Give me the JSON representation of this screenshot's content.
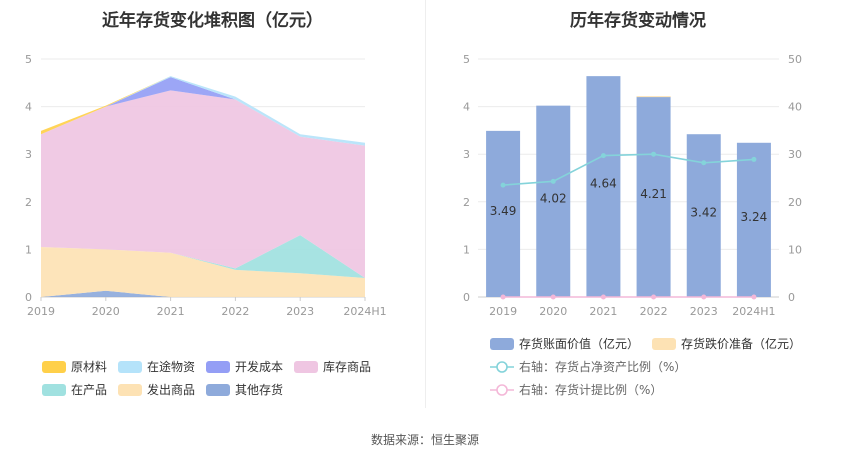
{
  "titles": {
    "left": "近年存货变化堆积图（亿元）",
    "right": "历年存货变动情况"
  },
  "source": "数据来源：恒生聚源",
  "chart_data": [
    {
      "type": "area",
      "title": "近年存货变化堆积图（亿元）",
      "categories": [
        "2019",
        "2020",
        "2021",
        "2022",
        "2023",
        "2024H1"
      ],
      "ylim": [
        0,
        5
      ],
      "yticks": [
        "0",
        "1",
        "2",
        "3",
        "4",
        "5"
      ],
      "stacked": true,
      "grid": true,
      "legend_position": "bottom",
      "series": [
        {
          "name": "其他存货",
          "color": "#8eaadb",
          "values": [
            0.0,
            0.13,
            0.0,
            0.0,
            0.0,
            0.0
          ]
        },
        {
          "name": "发出商品",
          "color": "#fde2b4",
          "values": [
            1.05,
            0.87,
            0.93,
            0.57,
            0.5,
            0.4
          ]
        },
        {
          "name": "在产品",
          "color": "#a0e1e0",
          "values": [
            0.0,
            0.0,
            0.0,
            0.03,
            0.8,
            0.0
          ]
        },
        {
          "name": "库存商品",
          "color": "#efc6e2",
          "values": [
            2.37,
            3.0,
            3.41,
            3.55,
            2.07,
            2.78
          ]
        },
        {
          "name": "开发成本",
          "color": "#949ef5",
          "values": [
            0.0,
            0.0,
            0.28,
            0.0,
            0.0,
            0.0
          ]
        },
        {
          "name": "在途物资",
          "color": "#b5e3fa",
          "values": [
            0.0,
            0.0,
            0.02,
            0.06,
            0.05,
            0.06
          ]
        },
        {
          "name": "原材料",
          "color": "#ffd04a",
          "values": [
            0.07,
            0.02,
            0.0,
            0.0,
            0.0,
            0.0
          ]
        }
      ],
      "legend_order": [
        "原材料",
        "在途物资",
        "开发成本",
        "库存商品",
        "在产品",
        "发出商品",
        "其他存货"
      ]
    },
    {
      "type": "bar",
      "title": "历年存货变动情况",
      "categories": [
        "2019",
        "2020",
        "2021",
        "2022",
        "2023",
        "2024H1"
      ],
      "ylim": [
        0,
        5
      ],
      "yticks": [
        "0",
        "1",
        "2",
        "3",
        "4",
        "5"
      ],
      "y2lim": [
        0,
        50
      ],
      "y2ticks": [
        "0",
        "10",
        "20",
        "30",
        "40",
        "50"
      ],
      "grid": true,
      "legend_position": "bottom",
      "series": [
        {
          "name": "存货账面价值（亿元）",
          "kind": "bar",
          "axis": "left",
          "color": "#8eaadb",
          "values": [
            3.49,
            4.02,
            4.64,
            4.21,
            3.42,
            3.24
          ],
          "labels": [
            "3.49",
            "4.02",
            "4.64",
            "4.21",
            "3.42",
            "3.24"
          ]
        },
        {
          "name": "存货跌价准备（亿元）",
          "kind": "bar",
          "axis": "left",
          "color": "#fde2b4",
          "values": [
            0,
            0,
            0,
            0.01,
            0,
            0
          ]
        },
        {
          "name": "右轴：存货占净资产比例（%）",
          "kind": "line",
          "axis": "right",
          "color": "#84d3da",
          "values": [
            23.5,
            24.3,
            29.7,
            30.0,
            28.2,
            28.9
          ]
        },
        {
          "name": "右轴：存货计提比例（%）",
          "kind": "line",
          "axis": "right",
          "color": "#f4b8d8",
          "values": [
            0,
            0,
            0,
            0,
            0,
            0
          ]
        }
      ]
    }
  ]
}
